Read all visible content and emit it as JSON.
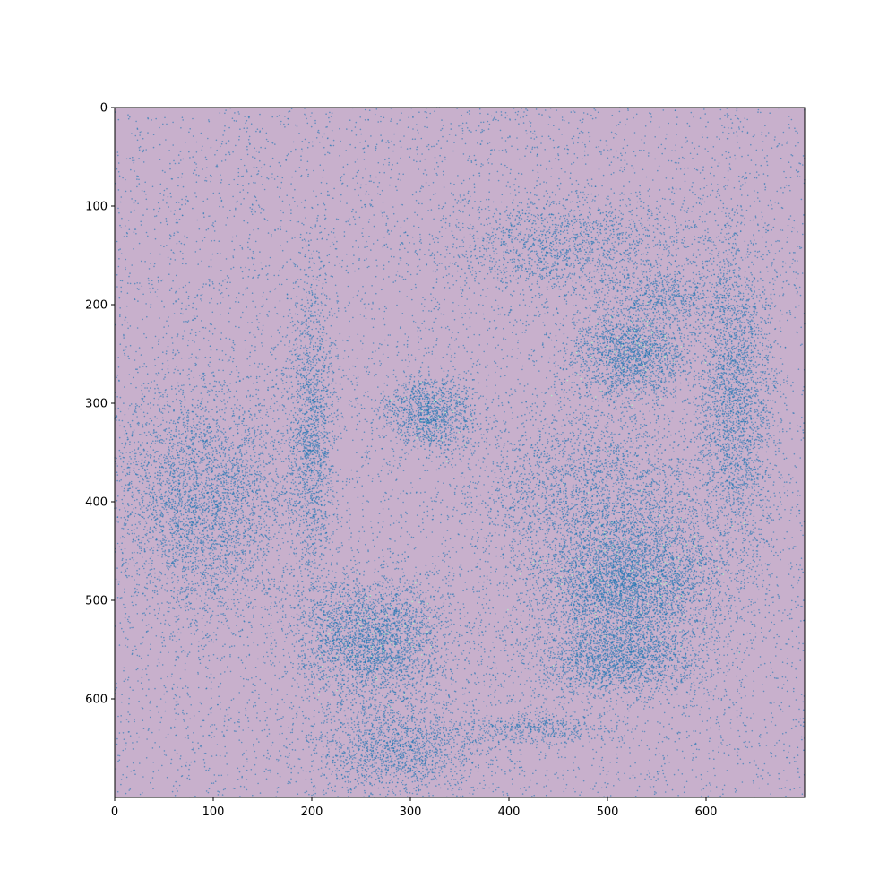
{
  "chart_data": {
    "type": "scatter",
    "title": "",
    "xlabel": "",
    "ylabel": "",
    "xlim": [
      0,
      700
    ],
    "ylim": [
      700,
      0
    ],
    "y_inverted": true,
    "grid": false,
    "x_ticks": [
      "0",
      "100",
      "200",
      "300",
      "400",
      "500",
      "600"
    ],
    "y_ticks": [
      "0",
      "100",
      "200",
      "300",
      "400",
      "500",
      "600"
    ],
    "x_tick_values": [
      0,
      100,
      200,
      300,
      400,
      500,
      600
    ],
    "y_tick_values": [
      0,
      100,
      200,
      300,
      400,
      500,
      600
    ],
    "background_color": "#c8b0cc",
    "point_color": "#1f77b4",
    "highlight_color": "#aef0c8",
    "series": [
      {
        "regions": [
          {
            "part": "left-eye",
            "cx": 320,
            "cy": 310,
            "rx": 45,
            "ry": 35,
            "density": 1.0
          },
          {
            "part": "right-eye",
            "cx": 525,
            "cy": 250,
            "rx": 55,
            "ry": 45,
            "density": 1.0
          },
          {
            "part": "nose",
            "cx": 520,
            "cy": 480,
            "rx": 90,
            "ry": 70,
            "density": 1.0
          },
          {
            "part": "nose-lower",
            "cx": 510,
            "cy": 560,
            "rx": 80,
            "ry": 35,
            "density": 0.8
          },
          {
            "part": "jowl-left",
            "cx": 260,
            "cy": 540,
            "rx": 70,
            "ry": 60,
            "density": 0.9
          },
          {
            "part": "left-ear",
            "cx": 90,
            "cy": 400,
            "rx": 80,
            "ry": 110,
            "density": 0.5
          },
          {
            "part": "left-cheek",
            "cx": 200,
            "cy": 330,
            "rx": 22,
            "ry": 150,
            "density": 0.6
          },
          {
            "part": "right-cheek-band",
            "cx": 630,
            "cy": 300,
            "rx": 35,
            "ry": 150,
            "density": 0.6
          },
          {
            "part": "forehead",
            "cx": 460,
            "cy": 140,
            "rx": 120,
            "ry": 45,
            "density": 0.35
          },
          {
            "part": "muzzle",
            "cx": 480,
            "cy": 380,
            "rx": 110,
            "ry": 70,
            "density": 0.3
          },
          {
            "part": "chin-curve",
            "cx": 430,
            "cy": 630,
            "rx": 60,
            "ry": 15,
            "density": 0.6
          },
          {
            "part": "neck",
            "cx": 290,
            "cy": 650,
            "rx": 90,
            "ry": 45,
            "density": 0.5
          },
          {
            "part": "brow",
            "cx": 560,
            "cy": 190,
            "rx": 60,
            "ry": 25,
            "density": 0.45
          }
        ],
        "background_noise_points": 9000,
        "region_points": 26000
      }
    ]
  }
}
